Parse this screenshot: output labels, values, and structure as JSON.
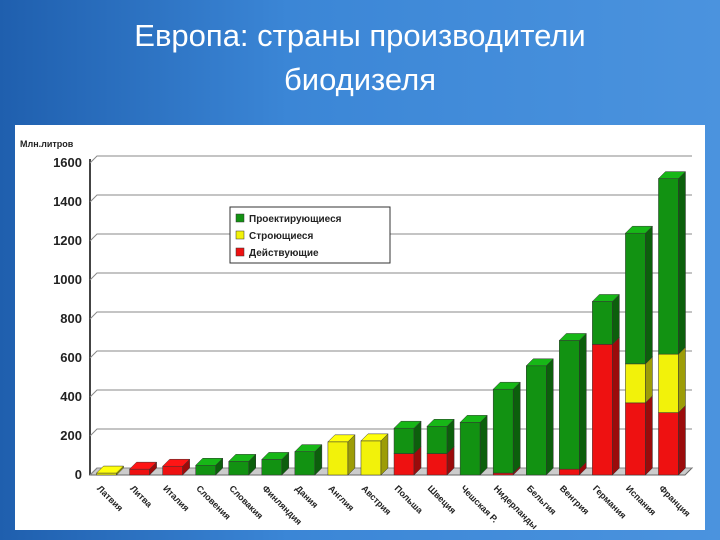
{
  "chart_data": {
    "type": "stacked-bar",
    "title": "Европа: страны производители биодизеля",
    "y_label": "Млн.литров",
    "categories": [
      "Латвия",
      "Литва",
      "Италия",
      "Словения",
      "Словакия",
      "Финляндия",
      "Дания",
      "Англия",
      "Австрия",
      "Польша",
      "Швеция",
      "Чешская Р.",
      "Нидерланды",
      "Бельгия",
      "Венгрия",
      "Германия",
      "Испания",
      "Франция"
    ],
    "series": [
      {
        "name": "Действующие",
        "color": "#ee1111",
        "values": [
          0,
          30,
          45,
          0,
          0,
          0,
          0,
          0,
          0,
          110,
          110,
          0,
          10,
          0,
          30,
          670,
          370,
          320
        ]
      },
      {
        "name": "Строющиеся",
        "color": "#f2f20a",
        "values": [
          10,
          0,
          0,
          0,
          0,
          0,
          0,
          170,
          175,
          0,
          0,
          0,
          0,
          0,
          0,
          0,
          200,
          300
        ]
      },
      {
        "name": "Проектирующиеся",
        "color": "#129212",
        "values": [
          0,
          0,
          0,
          50,
          70,
          80,
          120,
          0,
          0,
          130,
          140,
          270,
          430,
          560,
          660,
          220,
          670,
          900
        ]
      }
    ],
    "ylim": [
      0,
      1600
    ],
    "yticks": [
      0,
      200,
      400,
      600,
      800,
      1000,
      1200,
      1400,
      1600
    ],
    "grid": true
  }
}
